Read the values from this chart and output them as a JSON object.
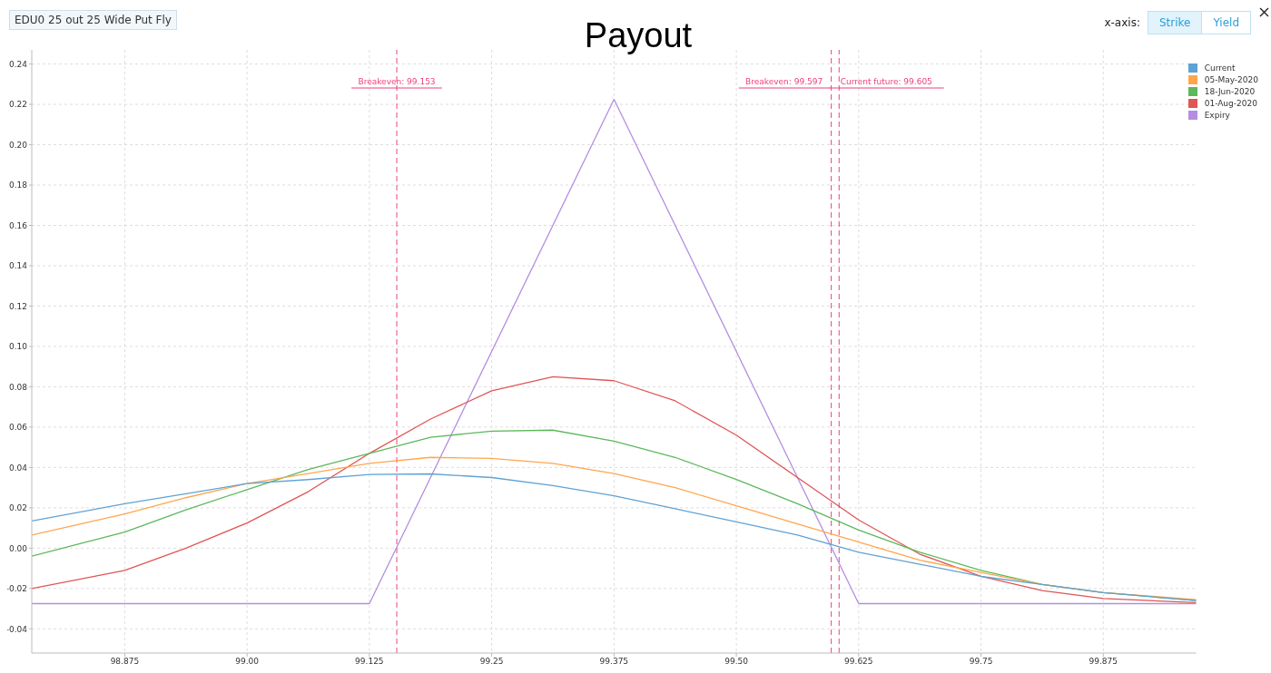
{
  "chart_data": {
    "type": "line",
    "title": "Payout",
    "annotations": [
      "EDU0 25 out 25 Wide Put Fly",
      "x-axis:",
      "Strike",
      "Yield"
    ],
    "x": [
      98.78,
      98.875,
      98.9375,
      99.0,
      99.0625,
      99.125,
      99.1875,
      99.25,
      99.3125,
      99.375,
      99.4375,
      99.5,
      99.5625,
      99.625,
      99.6875,
      99.75,
      99.8125,
      99.875,
      99.97
    ],
    "series": [
      {
        "name": "Current",
        "color": "#5fa2d5",
        "values": [
          0.0135,
          0.022,
          0.027,
          0.032,
          0.034,
          0.0365,
          0.0368,
          0.035,
          0.031,
          0.026,
          0.0195,
          0.013,
          0.0065,
          -0.002,
          -0.008,
          -0.014,
          -0.018,
          -0.022,
          -0.026
        ]
      },
      {
        "name": "05-May-2020",
        "color": "#ffa64d",
        "values": [
          0.0065,
          0.017,
          0.025,
          0.032,
          0.037,
          0.042,
          0.045,
          0.0445,
          0.042,
          0.037,
          0.03,
          0.021,
          0.012,
          0.003,
          -0.006,
          -0.012,
          -0.018,
          -0.022,
          -0.0255
        ]
      },
      {
        "name": "18-Jun-2020",
        "color": "#5cb85c",
        "values": [
          -0.004,
          0.008,
          0.019,
          0.029,
          0.039,
          0.047,
          0.055,
          0.058,
          0.0585,
          0.053,
          0.045,
          0.034,
          0.022,
          0.009,
          -0.002,
          -0.011,
          -0.018,
          -0.022,
          -0.026
        ]
      },
      {
        "name": "01-Aug-2020",
        "color": "#e05555",
        "values": [
          -0.02,
          -0.011,
          0.0,
          0.0125,
          0.028,
          0.047,
          0.064,
          0.078,
          0.085,
          0.083,
          0.073,
          0.056,
          0.035,
          0.014,
          -0.003,
          -0.014,
          -0.021,
          -0.025,
          -0.027
        ]
      },
      {
        "name": "Expiry",
        "color": "#b48ee0",
        "x": [
          98.78,
          99.125,
          99.375,
          99.625,
          99.97
        ],
        "values": [
          -0.0275,
          -0.0275,
          0.2225,
          -0.0275,
          -0.0275
        ]
      }
    ],
    "xlim": [
      98.78,
      99.97
    ],
    "xticks": [
      98.875,
      {
        "value": 99,
        "label": "99.00"
      },
      99.125,
      99.25,
      99.375,
      {
        "value": 99.5,
        "label": "99.50"
      },
      99.625,
      99.75,
      99.875
    ],
    "ylim": [
      -0.052,
      0.247
    ],
    "yticks": [
      -0.04,
      -0.02,
      {
        "value": 0,
        "label": "0.00"
      },
      0.02,
      0.04,
      0.06,
      0.08,
      {
        "value": 0.1,
        "label": "0.10"
      },
      0.12,
      0.14,
      0.16,
      0.18,
      {
        "value": 0.2,
        "label": "0.20"
      },
      0.22,
      0.24
    ],
    "ref_lines": [
      {
        "axis": "x",
        "value": 99.153,
        "label": "Breakeven: 99.153",
        "color": "#f0407a",
        "line_style": "dashed"
      },
      {
        "axis": "x",
        "value": 99.597,
        "label": "Breakeven: 99.597",
        "color": "#f0407a",
        "line_style": "dashed"
      },
      {
        "axis": "x",
        "value": 99.605,
        "label": "Current future: 99.605",
        "color": "#f0407a",
        "line_style": "dashed"
      }
    ],
    "grid": true,
    "legend": "top right",
    "marker": "none",
    "line_style": "solid"
  }
}
